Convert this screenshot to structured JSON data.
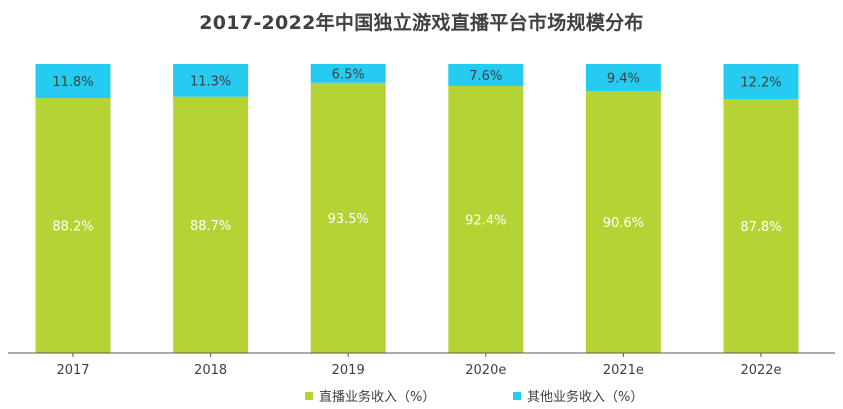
{
  "title": "2017-2022年中国独立游戏直播平台市场规模分布",
  "colors": {
    "series_0": "#b4d435",
    "series_1": "#25cbf1",
    "axis": "#595959",
    "text": "#404040"
  },
  "legend": [
    {
      "label": "直播业务收入（%）"
    },
    {
      "label": "其他业务收入（%）"
    }
  ],
  "chart_data": {
    "type": "bar",
    "stacked": true,
    "title": "2017-2022年中国独立游戏直播平台市场规模分布",
    "xlabel": "",
    "ylabel": "",
    "ylim": [
      0,
      100
    ],
    "grid": false,
    "legend_position": "bottom",
    "categories": [
      "2017",
      "2018",
      "2019",
      "2020e",
      "2021e",
      "2022e"
    ],
    "series": [
      {
        "name": "直播业务收入（%）",
        "values": [
          88.2,
          88.7,
          93.5,
          92.4,
          90.6,
          87.8
        ],
        "labels": [
          "88.2%",
          "88.7%",
          "93.5%",
          "92.4%",
          "90.6%",
          "87.8%"
        ]
      },
      {
        "name": "其他业务收入（%）",
        "values": [
          11.8,
          11.3,
          6.5,
          7.6,
          9.4,
          12.2
        ],
        "labels": [
          "11.8%",
          "11.3%",
          "6.5%",
          "7.6%",
          "9.4%",
          "12.2%"
        ]
      }
    ]
  }
}
